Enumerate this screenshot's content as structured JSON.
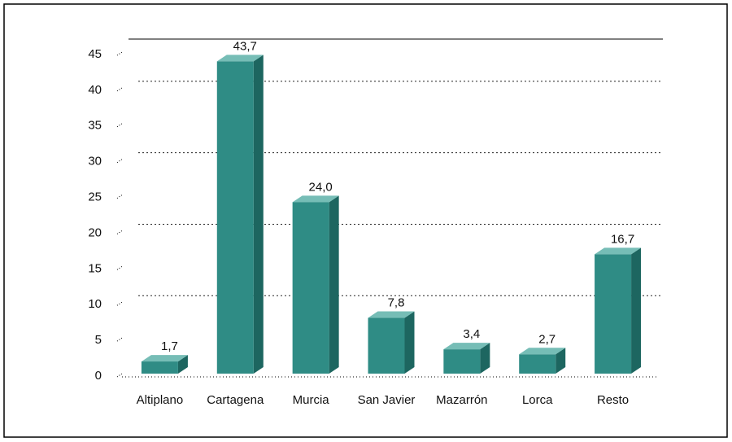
{
  "chart_data": {
    "type": "bar",
    "categories": [
      "Altiplano",
      "Cartagena",
      "Murcia",
      "San Javier",
      "Mazarrón",
      "Lorca",
      "Resto"
    ],
    "values": [
      1.7,
      43.7,
      24.0,
      7.8,
      3.4,
      2.7,
      16.7
    ],
    "value_labels": [
      "1,7",
      "43,7",
      "24,0",
      "7,8",
      "3,4",
      "2,7",
      "16,7"
    ],
    "color": "#2f8c85",
    "ylim": [
      0,
      45
    ],
    "yticks": [
      0,
      5,
      10,
      15,
      20,
      25,
      30,
      35,
      40,
      45
    ],
    "grid": true
  }
}
